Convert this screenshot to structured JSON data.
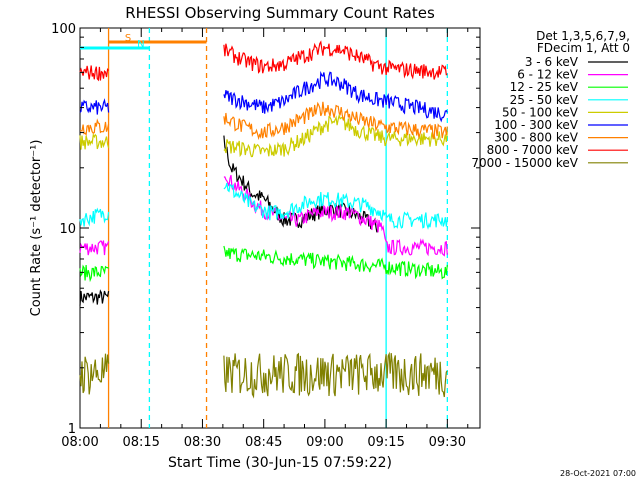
{
  "chart_data": {
    "type": "line",
    "title": "RHESSI Observing Summary Count Rates",
    "xlabel": "Start Time (30-Jun-15 07:59:22)",
    "ylabel": "Count Rate (s⁻¹ detector⁻¹)",
    "yscale": "log",
    "ylim": [
      1,
      100
    ],
    "xlim_minutes": [
      0,
      98
    ],
    "x_tick_minutes": [
      0,
      15,
      30,
      45,
      60,
      75,
      90
    ],
    "x_tick_labels": [
      "08:00",
      "08:15",
      "08:30",
      "08:45",
      "09:00",
      "09:15",
      "09:30"
    ],
    "y_tick_values": [
      1,
      10,
      100
    ],
    "y_tick_labels": [
      "1",
      "10",
      "100"
    ],
    "legend_header": [
      "Det 1,3,5,6,7,9,",
      "FDecim 1, Att 0"
    ],
    "legend_placement": "right, outside plot",
    "timestamp": "28-Oct-2021 07:00",
    "series": [
      {
        "name": "3 - 6 keV",
        "color": "#000000",
        "points": [
          [
            0,
            4.5
          ],
          [
            7,
            4.5
          ],
          [
            7,
            null
          ],
          [
            35,
            28
          ],
          [
            37,
            20
          ],
          [
            40,
            17
          ],
          [
            42,
            15
          ],
          [
            45,
            14
          ],
          [
            48,
            12
          ],
          [
            50,
            11
          ],
          [
            54,
            11
          ],
          [
            58,
            12
          ],
          [
            62,
            12.5
          ],
          [
            66,
            12
          ],
          [
            70,
            11
          ],
          [
            73,
            10
          ],
          [
            75,
            null
          ]
        ]
      },
      {
        "name": "6 - 12 keV",
        "color": "#ff00ff",
        "points": [
          [
            0,
            8
          ],
          [
            7,
            8
          ],
          [
            7,
            null
          ],
          [
            35,
            20
          ],
          [
            37,
            17
          ],
          [
            40,
            15
          ],
          [
            43,
            13
          ],
          [
            46,
            12
          ],
          [
            50,
            11
          ],
          [
            54,
            11
          ],
          [
            58,
            12
          ],
          [
            62,
            12
          ],
          [
            66,
            12
          ],
          [
            70,
            11
          ],
          [
            74,
            10
          ],
          [
            75,
            8
          ],
          [
            90,
            8
          ]
        ]
      },
      {
        "name": "12 - 25 keV",
        "color": "#00ff00",
        "points": [
          [
            0,
            6
          ],
          [
            7,
            6
          ],
          [
            7,
            null
          ],
          [
            35,
            7.5
          ],
          [
            90,
            6
          ]
        ]
      },
      {
        "name": "25 - 50 keV",
        "color": "#00ffff",
        "points": [
          [
            0,
            11
          ],
          [
            7,
            12
          ],
          [
            7,
            null
          ],
          [
            35,
            17
          ],
          [
            38,
            15
          ],
          [
            42,
            13
          ],
          [
            46,
            12
          ],
          [
            50,
            12
          ],
          [
            54,
            13
          ],
          [
            58,
            14
          ],
          [
            62,
            14
          ],
          [
            66,
            13.5
          ],
          [
            70,
            13
          ],
          [
            74,
            12
          ],
          [
            75,
            11
          ],
          [
            90,
            11
          ]
        ]
      },
      {
        "name": "50 - 100 keV",
        "color": "#cccc00",
        "points": [
          [
            0,
            27
          ],
          [
            7,
            27
          ],
          [
            7,
            null
          ],
          [
            35,
            26
          ],
          [
            40,
            25
          ],
          [
            45,
            24
          ],
          [
            50,
            25
          ],
          [
            55,
            28
          ],
          [
            60,
            33
          ],
          [
            64,
            34
          ],
          [
            68,
            31
          ],
          [
            72,
            29
          ],
          [
            75,
            28
          ],
          [
            90,
            28
          ]
        ]
      },
      {
        "name": "100 - 300 keV",
        "color": "#0000ff",
        "points": [
          [
            0,
            40
          ],
          [
            7,
            40
          ],
          [
            7,
            null
          ],
          [
            35,
            46
          ],
          [
            40,
            43
          ],
          [
            45,
            40
          ],
          [
            50,
            43
          ],
          [
            55,
            50
          ],
          [
            60,
            56
          ],
          [
            64,
            53
          ],
          [
            68,
            47
          ],
          [
            72,
            44
          ],
          [
            75,
            43
          ],
          [
            90,
            37
          ]
        ]
      },
      {
        "name": "300 - 800 keV",
        "color": "#ff8000",
        "points": [
          [
            0,
            32
          ],
          [
            7,
            32
          ],
          [
            7,
            null
          ],
          [
            35,
            36
          ],
          [
            40,
            32
          ],
          [
            45,
            30
          ],
          [
            50,
            32
          ],
          [
            55,
            36
          ],
          [
            60,
            40
          ],
          [
            64,
            38
          ],
          [
            68,
            35
          ],
          [
            72,
            33
          ],
          [
            75,
            32
          ],
          [
            90,
            30
          ]
        ]
      },
      {
        "name": "800 - 7000 keV",
        "color": "#ff0000",
        "points": [
          [
            0,
            60
          ],
          [
            7,
            60
          ],
          [
            7,
            null
          ],
          [
            35,
            78
          ],
          [
            40,
            69
          ],
          [
            45,
            64
          ],
          [
            50,
            66
          ],
          [
            55,
            73
          ],
          [
            60,
            80
          ],
          [
            64,
            78
          ],
          [
            68,
            72
          ],
          [
            72,
            66
          ],
          [
            75,
            63
          ],
          [
            90,
            60
          ]
        ]
      },
      {
        "name": "7000 - 15000 keV",
        "color": "#808000",
        "points": [
          [
            0,
            1.9
          ],
          [
            7,
            1.9
          ],
          [
            7,
            null
          ],
          [
            35,
            1.9
          ],
          [
            90,
            1.9
          ]
        ]
      }
    ],
    "annotations": [
      {
        "label": "S",
        "color": "#ff8000",
        "bar_start_minutes": 7,
        "bar_end_minutes": 31
      },
      {
        "label": "N",
        "color": "#00ffff",
        "bar_start_minutes": 0,
        "bar_end_minutes": 17
      }
    ],
    "vertical_markers": [
      {
        "minute": 7,
        "color": "#ff8000",
        "style": "solid"
      },
      {
        "minute": 17,
        "color": "#00ffff",
        "style": "dashed"
      },
      {
        "minute": 31,
        "color": "#ff8000",
        "style": "dashed"
      },
      {
        "minute": 75,
        "color": "#00ffff",
        "style": "solid"
      },
      {
        "minute": 90,
        "color": "#00ffff",
        "style": "dashed"
      }
    ]
  }
}
